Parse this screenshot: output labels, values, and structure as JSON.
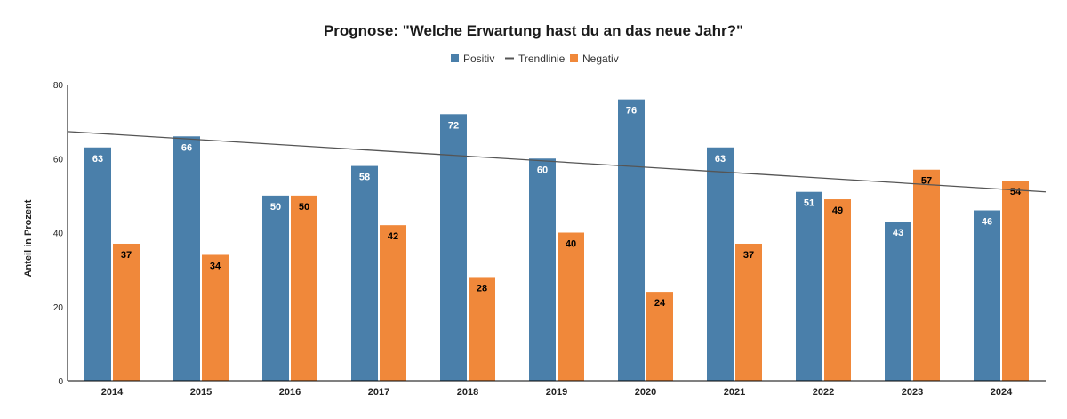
{
  "chart_data": {
    "type": "bar",
    "title": "Prognose: \"Welche Erwartung hast du an das neue Jahr?\"",
    "xlabel": "",
    "ylabel": "Anteil in Prozent",
    "ylim": [
      0,
      80
    ],
    "yticks": [
      0,
      20,
      40,
      60,
      80
    ],
    "categories": [
      "2014",
      "2015",
      "2016",
      "2017",
      "2018",
      "2019",
      "2020",
      "2021",
      "2022",
      "2023",
      "2024"
    ],
    "series": [
      {
        "name": "Positiv",
        "color": "#4a7faa",
        "label_color": "#ffffff",
        "values": [
          63,
          66,
          50,
          58,
          72,
          60,
          76,
          63,
          51,
          43,
          46
        ]
      },
      {
        "name": "Negativ",
        "color": "#f0883a",
        "label_color": "#000000",
        "values": [
          37,
          34,
          50,
          42,
          28,
          40,
          24,
          37,
          49,
          57,
          54
        ]
      }
    ],
    "trendline": {
      "name": "Trendlinie",
      "color": "#555555",
      "start": 67.3,
      "end": 51.0
    },
    "legend": {
      "placement": "top-center",
      "items": [
        "Positiv",
        "Trendlinie",
        "Negativ"
      ]
    },
    "grid": false
  }
}
